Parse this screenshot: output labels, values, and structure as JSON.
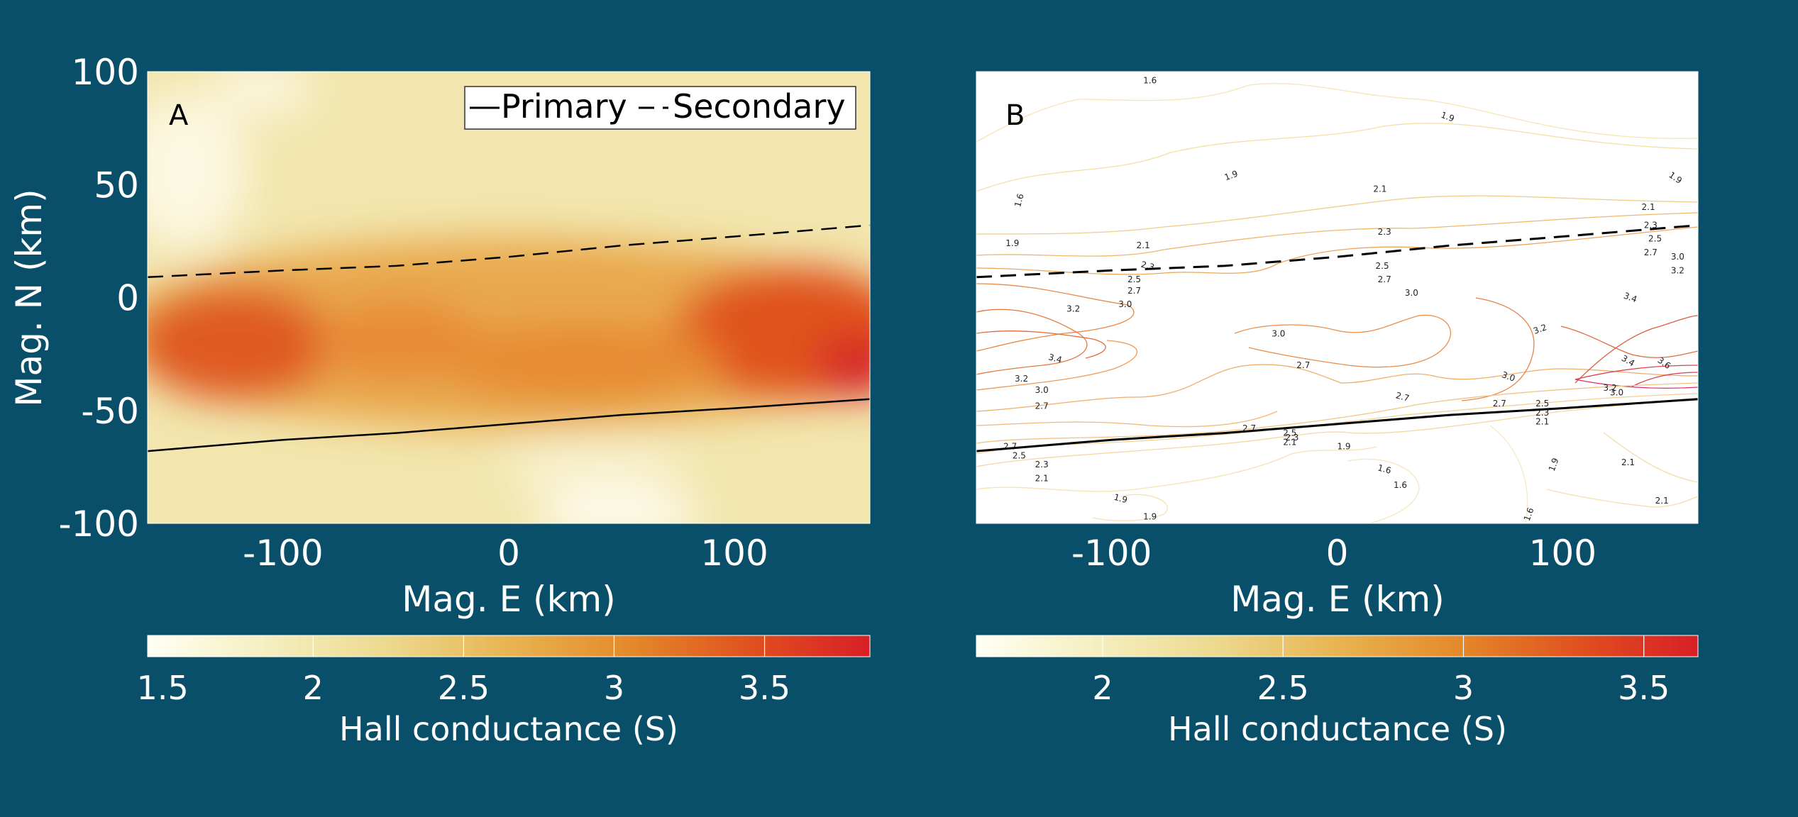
{
  "colors": {
    "background": "#0a4f6a",
    "colormap": [
      "#fffff5",
      "#f5efbf",
      "#ecd98e",
      "#e8b452",
      "#e48a2b",
      "#e0511f",
      "#d81f26"
    ]
  },
  "chart_data": [
    {
      "type": "heatmap",
      "panel_label": "A",
      "xlabel": "Mag. E (km)",
      "ylabel": "Mag. N (km)",
      "xlim": [
        -160,
        160
      ],
      "ylim": [
        -100,
        100
      ],
      "x_ticks": [
        -100,
        0,
        100
      ],
      "x_tick_labels": [
        "-100",
        "0",
        "100"
      ],
      "y_ticks": [
        100,
        50,
        0,
        -50,
        -100
      ],
      "y_tick_labels": [
        "100",
        "50",
        "0",
        "-50",
        "-100"
      ],
      "grid": false,
      "legend": {
        "placement": "top-right",
        "entries": [
          {
            "label": "Primary",
            "style": "solid",
            "color": "#000000"
          },
          {
            "label": "Secondary",
            "style": "dashed",
            "color": "#000000"
          }
        ]
      },
      "series": [
        {
          "name": "Primary",
          "style": "solid",
          "x": [
            -160,
            -100,
            -50,
            0,
            50,
            100,
            160
          ],
          "y": [
            -68,
            -63,
            -60,
            -56,
            -52,
            -49,
            -45
          ]
        },
        {
          "name": "Secondary",
          "style": "dashed",
          "x": [
            -160,
            -100,
            -50,
            0,
            50,
            100,
            160
          ],
          "y": [
            9,
            12,
            14,
            18,
            23,
            27,
            32
          ]
        }
      ],
      "colorbar": {
        "label": "Hall conductance (S)",
        "range": [
          1.45,
          3.85
        ],
        "ticks": [
          1.5,
          2,
          2.5,
          3,
          3.5
        ],
        "tick_labels": [
          "1.5",
          "2",
          "2.5",
          "3",
          "3.5"
        ]
      }
    },
    {
      "type": "contour",
      "panel_label": "B",
      "xlabel": "Mag. E (km)",
      "xlim": [
        -160,
        160
      ],
      "ylim": [
        -100,
        100
      ],
      "x_ticks": [
        -100,
        0,
        100
      ],
      "x_tick_labels": [
        "-100",
        "0",
        "100"
      ],
      "grid": false,
      "series": [
        {
          "name": "Primary",
          "style": "solid",
          "x": [
            -160,
            -100,
            -50,
            0,
            50,
            100,
            160
          ],
          "y": [
            -68,
            -63,
            -60,
            -56,
            -52,
            -49,
            -45
          ]
        },
        {
          "name": "Secondary",
          "style": "dashed",
          "x": [
            -160,
            -100,
            -50,
            0,
            50,
            100,
            160
          ],
          "y": [
            9,
            12,
            14,
            18,
            23,
            27,
            32
          ]
        }
      ],
      "contour_levels": [
        1.6,
        1.9,
        2.1,
        2.3,
        2.5,
        2.7,
        3.0,
        3.2,
        3.4,
        3.6
      ],
      "contour_labels": [
        {
          "text": "1.6",
          "x": -83,
          "y": 96,
          "rot": 0
        },
        {
          "text": "1.9",
          "x": 49,
          "y": 80,
          "rot": 20
        },
        {
          "text": "1.9",
          "x": 150,
          "y": 53,
          "rot": 35
        },
        {
          "text": "1.9",
          "x": -47,
          "y": 54,
          "rot": -20
        },
        {
          "text": "1.6",
          "x": -141,
          "y": 43,
          "rot": -75
        },
        {
          "text": "2.1",
          "x": 19,
          "y": 48,
          "rot": 0
        },
        {
          "text": "2.1",
          "x": 138,
          "y": 40,
          "rot": 0
        },
        {
          "text": "2.3",
          "x": 21,
          "y": 29,
          "rot": 0
        },
        {
          "text": "2.3",
          "x": 139,
          "y": 32,
          "rot": 0
        },
        {
          "text": "1.9",
          "x": -144,
          "y": 24,
          "rot": 0
        },
        {
          "text": "2.1",
          "x": -86,
          "y": 23,
          "rot": 0
        },
        {
          "text": "2.3",
          "x": -84,
          "y": 14,
          "rot": 15
        },
        {
          "text": "2.5",
          "x": 141,
          "y": 26,
          "rot": 0
        },
        {
          "text": "2.7",
          "x": 139,
          "y": 20,
          "rot": 0
        },
        {
          "text": "3.0",
          "x": 151,
          "y": 18,
          "rot": 0
        },
        {
          "text": "3.2",
          "x": 151,
          "y": 12,
          "rot": 0
        },
        {
          "text": "2.5",
          "x": 20,
          "y": 14,
          "rot": 0
        },
        {
          "text": "2.7",
          "x": 21,
          "y": 8,
          "rot": 0
        },
        {
          "text": "2.5",
          "x": -90,
          "y": 8,
          "rot": 0
        },
        {
          "text": "2.7",
          "x": -90,
          "y": 3,
          "rot": 0
        },
        {
          "text": "3.0",
          "x": 33,
          "y": 2,
          "rot": 0
        },
        {
          "text": "3.2",
          "x": -117,
          "y": -5,
          "rot": 0
        },
        {
          "text": "3.0",
          "x": -94,
          "y": -3,
          "rot": 0
        },
        {
          "text": "3.4",
          "x": 130,
          "y": 0,
          "rot": 20
        },
        {
          "text": "3.2",
          "x": 90,
          "y": -14,
          "rot": -20
        },
        {
          "text": "3.0",
          "x": -26,
          "y": -16,
          "rot": 0
        },
        {
          "text": "3.4",
          "x": -125,
          "y": -27,
          "rot": 15
        },
        {
          "text": "3.4",
          "x": 129,
          "y": -28,
          "rot": 30
        },
        {
          "text": "3.6",
          "x": 145,
          "y": -29,
          "rot": 35
        },
        {
          "text": "2.7",
          "x": -15,
          "y": -30,
          "rot": 0
        },
        {
          "text": "3.0",
          "x": 76,
          "y": -35,
          "rot": 20
        },
        {
          "text": "3.2",
          "x": -140,
          "y": -36,
          "rot": 0
        },
        {
          "text": "3.0",
          "x": -131,
          "y": -41,
          "rot": 0
        },
        {
          "text": "3.2",
          "x": 121,
          "y": -40,
          "rot": 0
        },
        {
          "text": "3.0",
          "x": 124,
          "y": -42,
          "rot": 0
        },
        {
          "text": "2.7",
          "x": 29,
          "y": -44,
          "rot": 15
        },
        {
          "text": "2.5",
          "x": 91,
          "y": -47,
          "rot": 0
        },
        {
          "text": "2.3",
          "x": 91,
          "y": -51,
          "rot": 0
        },
        {
          "text": "2.7",
          "x": 72,
          "y": -47,
          "rot": 0
        },
        {
          "text": "2.1",
          "x": 91,
          "y": -55,
          "rot": 0
        },
        {
          "text": "2.7",
          "x": -131,
          "y": -48,
          "rot": 0
        },
        {
          "text": "2.7",
          "x": -39,
          "y": -58,
          "rot": 0
        },
        {
          "text": "2.5",
          "x": -21,
          "y": -60,
          "rot": 0
        },
        {
          "text": "2.3",
          "x": -20,
          "y": -62,
          "rot": 0
        },
        {
          "text": "2.1",
          "x": -21,
          "y": -64,
          "rot": 0
        },
        {
          "text": "2.7",
          "x": -145,
          "y": -66,
          "rot": 0
        },
        {
          "text": "2.5",
          "x": -141,
          "y": -70,
          "rot": 0
        },
        {
          "text": "2.3",
          "x": -131,
          "y": -74,
          "rot": 0
        },
        {
          "text": "2.1",
          "x": -131,
          "y": -80,
          "rot": 0
        },
        {
          "text": "1.9",
          "x": 3,
          "y": -66,
          "rot": 0
        },
        {
          "text": "1.6",
          "x": 21,
          "y": -76,
          "rot": 15
        },
        {
          "text": "1.6",
          "x": 28,
          "y": -83,
          "rot": 0
        },
        {
          "text": "1.9",
          "x": 96,
          "y": -74,
          "rot": -70
        },
        {
          "text": "2.1",
          "x": 129,
          "y": -73,
          "rot": 0
        },
        {
          "text": "1.9",
          "x": -96,
          "y": -89,
          "rot": 15
        },
        {
          "text": "1.9",
          "x": -83,
          "y": -97,
          "rot": 0
        },
        {
          "text": "1.6",
          "x": 85,
          "y": -96,
          "rot": -70
        },
        {
          "text": "2.1",
          "x": 144,
          "y": -90,
          "rot": 0
        }
      ],
      "colorbar": {
        "label": "Hall conductance (S)",
        "range": [
          1.65,
          3.65
        ],
        "ticks": [
          2,
          2.5,
          3,
          3.5
        ],
        "tick_labels": [
          "2",
          "2.5",
          "3",
          "3.5"
        ]
      }
    }
  ]
}
